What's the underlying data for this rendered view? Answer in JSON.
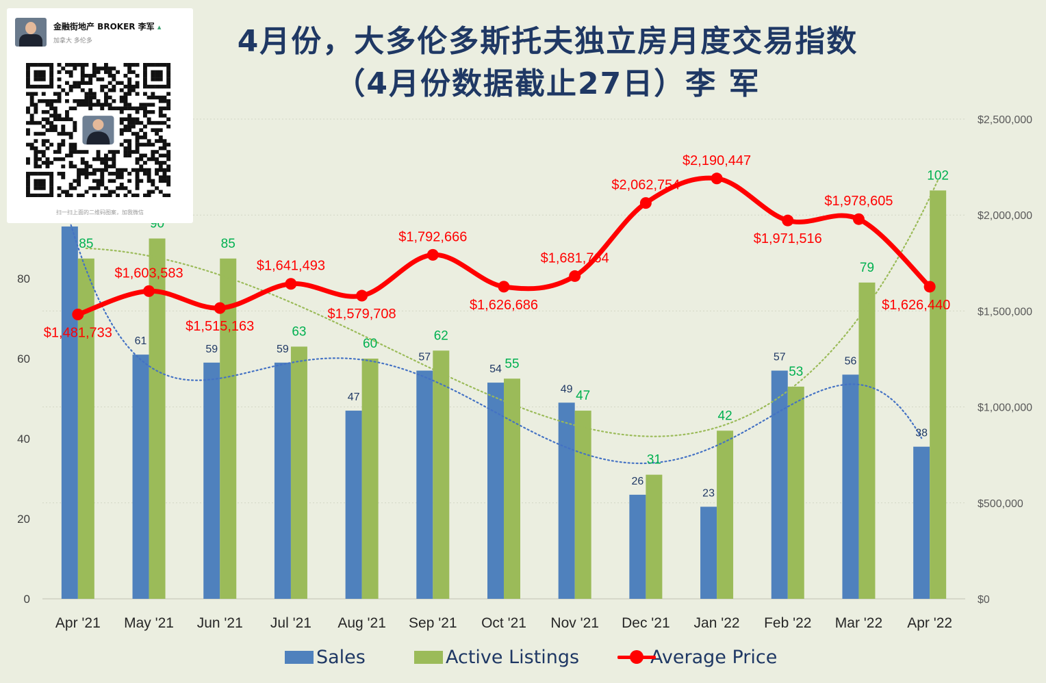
{
  "title": {
    "line1": "4月份，大多伦多斯托夫独立房月度交易指数",
    "line2": "（4月份数据截止27日）李 军"
  },
  "qr_card": {
    "name": "金融街地产 BROKER 李军",
    "location": "加拿大 多伦多",
    "hint": "扫一扫上面的二维码图案，加我微信",
    "badge_icon": "person-icon"
  },
  "colors": {
    "background": "#ebeee0",
    "sales": "#4f81bd",
    "active": "#9bbb59",
    "price": "#ff0000",
    "title": "#1f3864",
    "sales_label": "#1f3864",
    "active_label": "#00b050",
    "price_label": "#ff0000",
    "sales_trend": "#4472c4",
    "active_trend": "#9bbb59"
  },
  "legend": {
    "sales": "Sales",
    "active": "Active Listings",
    "price": "Average Price"
  },
  "chart_data": {
    "type": "bar+line",
    "title": "4月份，大多伦多斯托夫独立房月度交易指数（4月份数据截止27日）李 军",
    "categories": [
      "Apr '21",
      "May '21",
      "Jun '21",
      "Jul '21",
      "Aug '21",
      "Sep '21",
      "Oct '21",
      "Nov '21",
      "Dec '21",
      "Jan '22",
      "Feb '22",
      "Mar '22",
      "Apr '22"
    ],
    "series": [
      {
        "name": "Sales",
        "type": "bar",
        "axis": "left",
        "values": [
          93,
          61,
          59,
          59,
          47,
          57,
          54,
          49,
          26,
          23,
          57,
          56,
          38
        ],
        "labels": [
          "",
          "61",
          "59",
          "59",
          "47",
          "57",
          "54",
          "49",
          "26",
          "23",
          "57",
          "56",
          "38"
        ]
      },
      {
        "name": "Active Listings",
        "type": "bar",
        "axis": "left",
        "values": [
          85,
          90,
          85,
          63,
          60,
          62,
          55,
          47,
          31,
          42,
          53,
          79,
          102
        ],
        "labels": [
          "85",
          "90",
          "85",
          "63",
          "60",
          "62",
          "55",
          "47",
          "31",
          "42",
          "53",
          "79",
          "102"
        ]
      },
      {
        "name": "Average Price",
        "type": "line",
        "axis": "right",
        "smooth": true,
        "values": [
          1481733,
          1603583,
          1515163,
          1641493,
          1579708,
          1792666,
          1626686,
          1681764,
          2062754,
          2190447,
          1971516,
          1978605,
          1626440
        ],
        "labels": [
          "$1,481,733",
          "$1,603,583",
          "$1,515,163",
          "$1,641,493",
          "$1,579,708",
          "$1,792,666",
          "$1,626,686",
          "$1,681,764",
          "$2,062,754",
          "$2,190,447",
          "$1,971,516",
          "$1,978,605",
          "$1,626,440"
        ]
      }
    ],
    "trendlines": [
      {
        "series": "Sales",
        "type": "polynomial",
        "style": "dotted"
      },
      {
        "series": "Active Listings",
        "type": "polynomial",
        "style": "dotted"
      }
    ],
    "y_left": {
      "ticks": [
        "0",
        "20",
        "40",
        "60",
        "80"
      ],
      "tick_values": [
        0,
        20,
        40,
        60,
        80
      ],
      "lim": [
        0,
        120
      ]
    },
    "y_right": {
      "ticks": [
        "$0",
        "$500,000",
        "$1,000,000",
        "$1,500,000",
        "$2,000,000",
        "$2,500,000"
      ],
      "tick_values": [
        0,
        500000,
        1000000,
        1500000,
        2000000,
        2500000
      ],
      "lim": [
        0,
        2500000
      ]
    },
    "grid": "horizontal dotted",
    "legend_position": "bottom"
  }
}
